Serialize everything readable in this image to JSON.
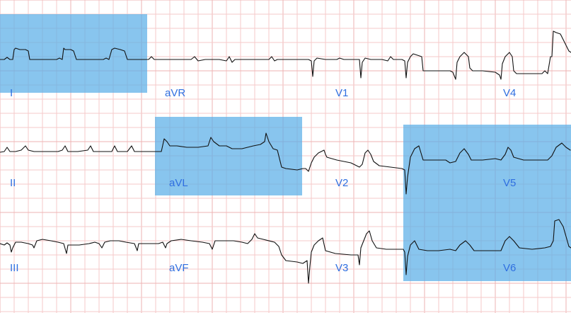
{
  "ecg": {
    "leads": {
      "I": "I",
      "aVR": "aVR",
      "V1": "V1",
      "V4": "V4",
      "II": "II",
      "aVL": "aVL",
      "V2": "V2",
      "V5": "V5",
      "III": "III",
      "aVF": "aVF",
      "V3": "V3",
      "V6": "V6"
    },
    "highlighted_regions": [
      "I",
      "aVL",
      "V5",
      "V6"
    ],
    "colors": {
      "grid": "#f6caca",
      "highlight": "#5aaee8",
      "trace": "#111111",
      "label": "#2f6fe0"
    }
  }
}
